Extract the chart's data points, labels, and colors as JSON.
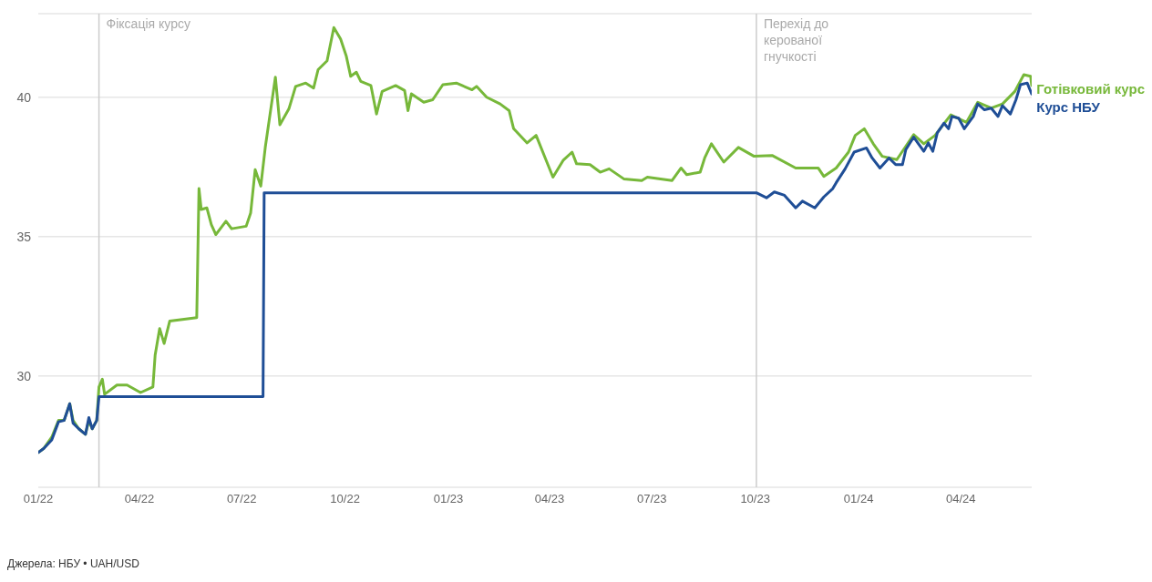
{
  "chart_data": {
    "type": "line",
    "xlim": [
      "2022-01-01",
      "2024-06-03"
    ],
    "xticks": [
      {
        "value": "2022-01-01",
        "label": "01/22"
      },
      {
        "value": "2022-04-01",
        "label": "04/22"
      },
      {
        "value": "2022-07-01",
        "label": "07/22"
      },
      {
        "value": "2022-10-01",
        "label": "10/22"
      },
      {
        "value": "2023-01-01",
        "label": "01/23"
      },
      {
        "value": "2023-04-01",
        "label": "04/23"
      },
      {
        "value": "2023-07-01",
        "label": "07/23"
      },
      {
        "value": "2023-10-01",
        "label": "10/23"
      },
      {
        "value": "2024-01-01",
        "label": "01/24"
      },
      {
        "value": "2024-04-01",
        "label": "04/24"
      }
    ],
    "ylim": [
      26,
      43
    ],
    "yticks": [
      30,
      35,
      40
    ],
    "grid": "y",
    "legend": "right",
    "line_style": "solid",
    "marker": "none",
    "ref_lines": [
      {
        "axis": "x",
        "value": "2022-02-24",
        "label": "Фіксація курсу",
        "color": "#cccccc"
      },
      {
        "axis": "x",
        "value": "2023-10-02",
        "label": "Перехід до керованої гнучкості",
        "color": "#cccccc"
      }
    ],
    "annotations": [
      "Джерела: НБУ • UAH/USD"
    ],
    "series": [
      {
        "name": "Готівковий курс",
        "color": "#77b83a",
        "x": [
          "2022-01-01",
          "2022-01-06",
          "2022-01-13",
          "2022-01-19",
          "2022-01-24",
          "2022-01-29",
          "2022-02-01",
          "2022-02-06",
          "2022-02-12",
          "2022-02-15",
          "2022-02-18",
          "2022-02-22",
          "2022-02-24",
          "2022-02-27",
          "2022-03-01",
          "2022-03-12",
          "2022-03-21",
          "2022-04-02",
          "2022-04-13",
          "2022-04-15",
          "2022-04-19",
          "2022-04-23",
          "2022-04-28",
          "2022-05-22",
          "2022-05-24",
          "2022-05-26",
          "2022-05-31",
          "2022-06-04",
          "2022-06-08",
          "2022-06-17",
          "2022-06-22",
          "2022-07-05",
          "2022-07-09",
          "2022-07-13",
          "2022-07-18",
          "2022-07-22",
          "2022-07-31",
          "2022-08-04",
          "2022-08-12",
          "2022-08-18",
          "2022-08-27",
          "2022-09-03",
          "2022-09-07",
          "2022-09-15",
          "2022-09-21",
          "2022-09-27",
          "2022-10-02",
          "2022-10-06",
          "2022-10-11",
          "2022-10-15",
          "2022-10-24",
          "2022-10-29",
          "2022-11-03",
          "2022-11-15",
          "2022-11-23",
          "2022-11-26",
          "2022-11-29",
          "2022-12-10",
          "2022-12-18",
          "2022-12-27",
          "2023-01-08",
          "2023-01-22",
          "2023-01-26",
          "2023-02-04",
          "2023-02-16",
          "2023-02-24",
          "2023-02-28",
          "2023-03-12",
          "2023-03-20",
          "2023-03-29",
          "2023-04-04",
          "2023-04-13",
          "2023-04-21",
          "2023-04-25",
          "2023-05-07",
          "2023-05-16",
          "2023-05-24",
          "2023-06-06",
          "2023-06-22",
          "2023-06-27",
          "2023-07-19",
          "2023-07-27",
          "2023-08-01",
          "2023-08-13",
          "2023-08-17",
          "2023-08-23",
          "2023-09-03",
          "2023-09-16",
          "2023-09-30",
          "2023-10-16",
          "2023-11-06",
          "2023-11-26",
          "2023-12-01",
          "2023-12-12",
          "2023-12-23",
          "2023-12-29",
          "2024-01-06",
          "2024-01-14",
          "2024-01-22",
          "2024-02-04",
          "2024-02-19",
          "2024-02-28",
          "2024-03-09",
          "2024-03-23",
          "2024-04-06",
          "2024-04-16",
          "2024-04-28",
          "2024-05-08",
          "2024-05-19",
          "2024-05-27",
          "2024-06-02",
          "2024-06-03"
        ],
        "values": [
          27.25,
          27.4,
          27.8,
          28.4,
          28.4,
          29.0,
          28.4,
          28.1,
          27.9,
          28.4,
          28.1,
          28.4,
          29.6,
          29.88,
          29.34,
          29.67,
          29.67,
          29.4,
          29.6,
          30.75,
          31.7,
          31.16,
          31.97,
          32.09,
          36.72,
          35.97,
          36.03,
          35.43,
          35.07,
          35.55,
          35.28,
          35.37,
          35.85,
          37.4,
          36.81,
          38.2,
          40.72,
          39.01,
          39.58,
          40.39,
          40.51,
          40.33,
          40.99,
          41.31,
          42.5,
          42.09,
          41.49,
          40.75,
          40.9,
          40.57,
          40.42,
          39.4,
          40.21,
          40.42,
          40.24,
          39.52,
          40.12,
          39.82,
          39.91,
          40.45,
          40.51,
          40.27,
          40.39,
          40.0,
          39.76,
          39.52,
          38.87,
          38.36,
          38.63,
          37.73,
          37.13,
          37.73,
          38.03,
          37.61,
          37.58,
          37.31,
          37.43,
          37.07,
          37.01,
          37.13,
          37.01,
          37.46,
          37.22,
          37.31,
          37.82,
          38.33,
          37.67,
          38.2,
          37.88,
          37.91,
          37.46,
          37.46,
          37.16,
          37.46,
          38.03,
          38.63,
          38.87,
          38.33,
          37.88,
          37.76,
          38.66,
          38.33,
          38.63,
          39.37,
          39.1,
          39.82,
          39.61,
          39.76,
          40.21,
          40.81,
          40.75,
          40.42
        ]
      },
      {
        "name": "Курс НБУ",
        "color": "#1f4e96",
        "x": [
          "2022-01-01",
          "2022-01-06",
          "2022-01-13",
          "2022-01-19",
          "2022-01-24",
          "2022-01-29",
          "2022-02-01",
          "2022-02-06",
          "2022-02-12",
          "2022-02-15",
          "2022-02-18",
          "2022-02-22",
          "2022-02-24",
          "2022-07-20",
          "2022-07-21",
          "2023-10-02",
          "2023-10-11",
          "2023-10-18",
          "2023-10-27",
          "2023-11-06",
          "2023-11-12",
          "2023-11-23",
          "2023-12-01",
          "2023-12-09",
          "2023-12-12",
          "2023-12-20",
          "2023-12-28",
          "2024-01-08",
          "2024-01-13",
          "2024-01-20",
          "2024-01-28",
          "2024-02-03",
          "2024-02-09",
          "2024-02-12",
          "2024-02-19",
          "2024-02-28",
          "2024-03-03",
          "2024-03-07",
          "2024-03-11",
          "2024-03-17",
          "2024-03-21",
          "2024-03-24",
          "2024-03-30",
          "2024-04-04",
          "2024-04-12",
          "2024-04-16",
          "2024-04-22",
          "2024-04-28",
          "2024-05-04",
          "2024-05-08",
          "2024-05-15",
          "2024-05-20",
          "2024-05-24",
          "2024-05-30",
          "2024-06-03"
        ],
        "values": [
          27.25,
          27.4,
          27.7,
          28.35,
          28.4,
          29.0,
          28.3,
          28.1,
          27.9,
          28.5,
          28.1,
          28.4,
          29.25,
          29.25,
          36.57,
          36.57,
          36.39,
          36.6,
          36.48,
          36.03,
          36.27,
          36.03,
          36.42,
          36.72,
          36.93,
          37.43,
          38.03,
          38.18,
          37.82,
          37.46,
          37.82,
          37.58,
          37.58,
          38.12,
          38.57,
          38.06,
          38.36,
          38.06,
          38.72,
          39.07,
          38.87,
          39.31,
          39.25,
          38.87,
          39.31,
          39.76,
          39.55,
          39.61,
          39.31,
          39.7,
          39.4,
          39.91,
          40.45,
          40.51,
          40.12
        ]
      }
    ]
  }
}
